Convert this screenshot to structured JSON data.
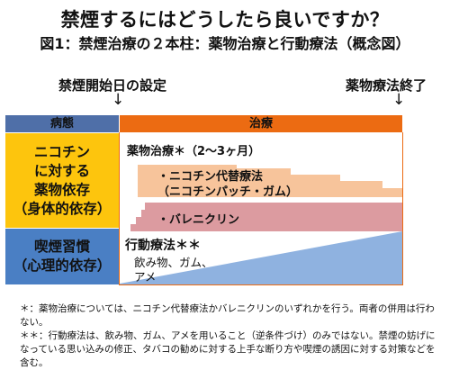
{
  "title": "禁煙するにはどうしたら良いですか？",
  "subtitle": "図1：禁煙治療の２本柱：薬物治療と行動療法（概念図）",
  "markers": {
    "start_label": "禁煙開始日の設定",
    "end_label": "薬物療法終了",
    "arrow": "↓"
  },
  "headers": {
    "condition": "病態",
    "treatment": "治療"
  },
  "conditions": {
    "drug_dependence": [
      "ニコチン",
      "に対する",
      "薬物依存",
      "（身体的依存）"
    ],
    "smoking_habit": [
      "喫煙習慣",
      "（心理的依存）"
    ]
  },
  "treatments": {
    "drug_therapy": "薬物治療＊（2～3ヶ月）",
    "nrt_line1": "・ニコチン代替療法",
    "nrt_line2": "（ニコチンパッチ・ガム）",
    "varenicline": "・バレニクリン",
    "behavioral_therapy": "行動療法＊＊",
    "behavioral_examples_line1": "飲み物、ガム、",
    "behavioral_examples_line2": "アメ"
  },
  "notes": {
    "note1": "＊：薬物治療については、ニコチン代替療法かバレニクリンのいずれかを行う。両者の併用は行わない。",
    "note2": "＊＊：行動療法は、飲み物、ガム、アメを用いること（逆条件づけ）のみではない。禁煙の妨げになっている思い込みの修正、タバコの勧めに対する上手な断り方や喫煙の誘因に対する対策などを含む。"
  },
  "colors": {
    "header_dark": "#4f6fa8",
    "header_orange": "#ec6b12",
    "condition_yellow": "#fdc50d",
    "condition_blue": "#4a7fc4",
    "nrt_bar": "#f7c49b",
    "varenicline_bar": "#dc9ba0",
    "behavior_triangle": "#8fb2e0",
    "border_orange": "#ec6b12"
  }
}
